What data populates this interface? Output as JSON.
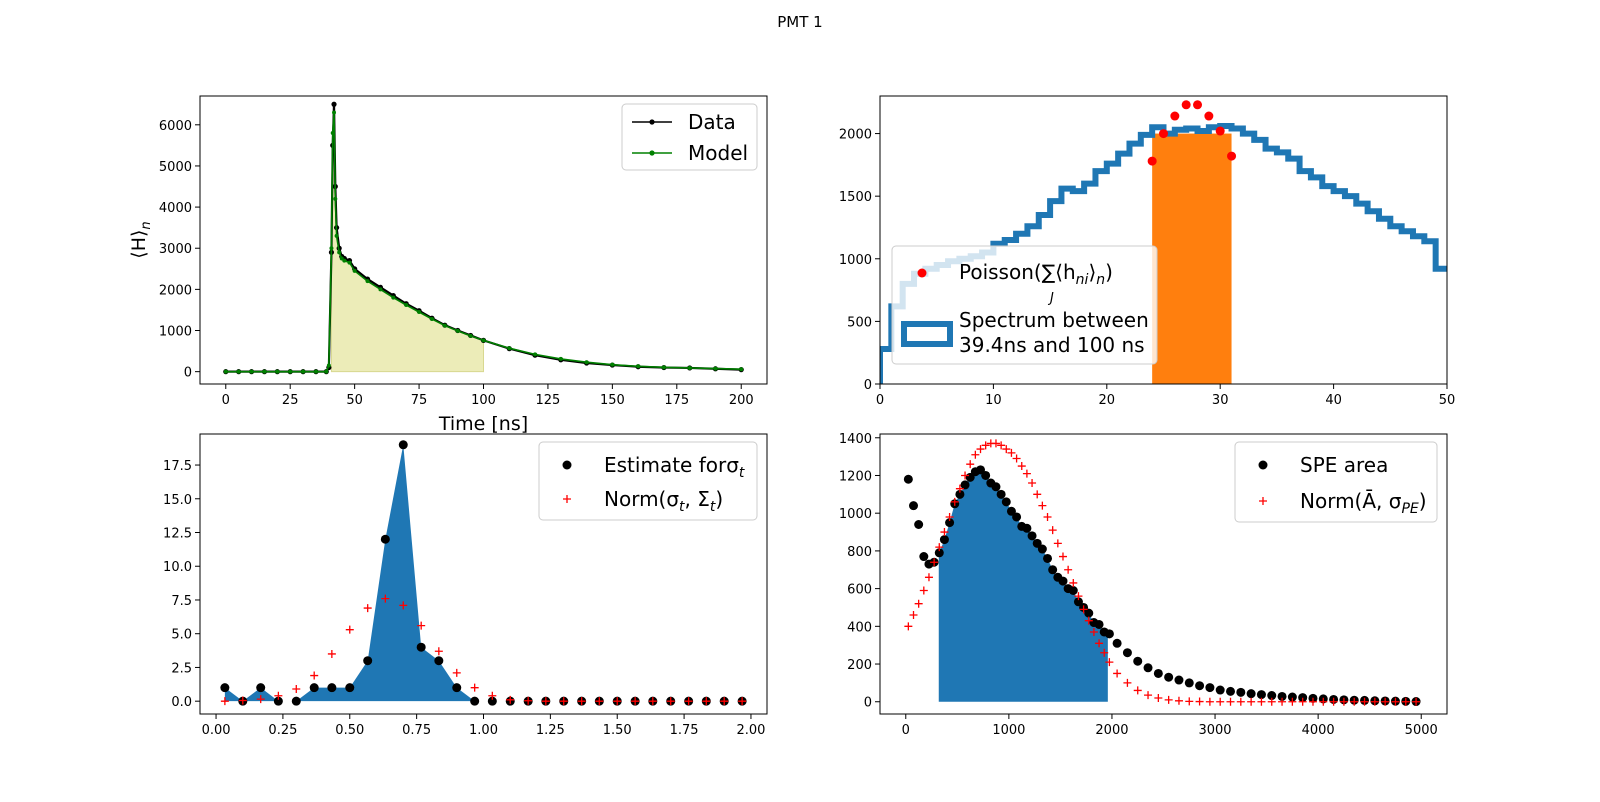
{
  "figure": {
    "suptitle": "PMT 1"
  },
  "chart_data": [
    {
      "id": "waveform",
      "type": "line",
      "title": "",
      "xlabel": "Time [ns]",
      "ylabel": "⟨H⟩",
      "ylabel_sub": "n",
      "xlim": [
        -10,
        210
      ],
      "ylim": [
        -300,
        6700
      ],
      "x_ticks": [
        0,
        25,
        50,
        75,
        100,
        125,
        150,
        175,
        200
      ],
      "y_ticks": [
        0,
        1000,
        2000,
        3000,
        4000,
        5000,
        6000
      ],
      "legend_position": "upper right",
      "shaded_region": {
        "x_from": 41,
        "x_to": 100,
        "color": "#e6e6a0"
      },
      "series": [
        {
          "name": "Data",
          "color": "#000000",
          "x": [
            0,
            5,
            10,
            15,
            20,
            25,
            30,
            35,
            39,
            40,
            41,
            41.5,
            42,
            42.5,
            43,
            44,
            45,
            46,
            48,
            50,
            55,
            60,
            65,
            70,
            75,
            80,
            85,
            90,
            95,
            100,
            110,
            120,
            130,
            140,
            150,
            160,
            170,
            180,
            190,
            200
          ],
          "y": [
            0,
            0,
            0,
            0,
            0,
            0,
            0,
            0,
            0,
            100,
            2900,
            5500,
            6500,
            4500,
            3500,
            3000,
            2800,
            2750,
            2700,
            2500,
            2250,
            2050,
            1850,
            1650,
            1480,
            1300,
            1130,
            1000,
            880,
            760,
            560,
            400,
            290,
            210,
            160,
            120,
            100,
            90,
            70,
            50
          ]
        },
        {
          "name": "Model",
          "color": "#008000",
          "x": [
            0,
            5,
            10,
            15,
            20,
            25,
            30,
            35,
            39,
            40,
            41,
            41.5,
            42,
            42.5,
            43,
            44,
            45,
            46,
            48,
            50,
            55,
            60,
            65,
            70,
            75,
            80,
            85,
            90,
            95,
            100,
            110,
            120,
            130,
            140,
            150,
            160,
            170,
            180,
            190,
            200
          ],
          "y": [
            0,
            0,
            0,
            0,
            0,
            0,
            0,
            0,
            0,
            150,
            3000,
            5800,
            6300,
            4200,
            3300,
            2900,
            2750,
            2700,
            2650,
            2450,
            2200,
            2000,
            1800,
            1620,
            1450,
            1280,
            1120,
            990,
            870,
            760,
            570,
            420,
            310,
            230,
            170,
            130,
            105,
            90,
            75,
            60
          ]
        }
      ]
    },
    {
      "id": "spectrum",
      "type": "bar",
      "title": "",
      "xlabel": "",
      "ylabel": "",
      "xlim": [
        0,
        50
      ],
      "ylim": [
        0,
        2300
      ],
      "x_ticks": [
        0,
        10,
        20,
        30,
        40,
        50
      ],
      "y_ticks": [
        0,
        500,
        1000,
        1500,
        2000
      ],
      "legend_position": "center left",
      "step_series": {
        "name": "Spectrum between 39.4ns and 100 ns",
        "name_lines": [
          "Spectrum between",
          "39.4ns and 100 ns"
        ],
        "color": "#1f77b4",
        "bin_edges": [
          0,
          1,
          2,
          3,
          4,
          5,
          6,
          7,
          8,
          9,
          10,
          11,
          12,
          13,
          14,
          15,
          16,
          17,
          18,
          19,
          20,
          21,
          22,
          23,
          24,
          25,
          26,
          27,
          28,
          29,
          30,
          31,
          32,
          33,
          34,
          35,
          36,
          37,
          38,
          39,
          40,
          41,
          42,
          43,
          44,
          45,
          46,
          47,
          48,
          49,
          50
        ],
        "values": [
          280,
          620,
          800,
          880,
          920,
          950,
          980,
          1000,
          1020,
          1050,
          1120,
          1150,
          1200,
          1260,
          1350,
          1460,
          1560,
          1540,
          1600,
          1700,
          1760,
          1840,
          1920,
          1990,
          2050,
          2000,
          2030,
          2040,
          2020,
          2050,
          2060,
          2040,
          2000,
          1950,
          1880,
          1850,
          1800,
          1700,
          1650,
          1580,
          1540,
          1500,
          1440,
          1380,
          1320,
          1260,
          1220,
          1180,
          1140,
          920
        ]
      },
      "highlight_bars": {
        "color": "#ff7f0e",
        "x_from": 24,
        "x_to": 31,
        "value": 2000
      },
      "points_series": {
        "name": "Poisson",
        "color": "#ff0000",
        "x": [
          24,
          25,
          26,
          27,
          28,
          29,
          30,
          31
        ],
        "y": [
          1780,
          2000,
          2140,
          2230,
          2230,
          2140,
          2020,
          1820
        ]
      }
    },
    {
      "id": "sigma_t",
      "type": "scatter",
      "title": "",
      "xlabel": "",
      "ylabel": "",
      "xlim": [
        -0.06,
        2.06
      ],
      "ylim": [
        -0.95,
        19.8
      ],
      "x_ticks": [
        0.0,
        0.25,
        0.5,
        0.75,
        1.0,
        1.25,
        1.5,
        1.75,
        2.0
      ],
      "x_tick_labels": [
        "0.00",
        "0.25",
        "0.50",
        "0.75",
        "1.00",
        "1.25",
        "1.50",
        "1.75",
        "2.00"
      ],
      "y_ticks": [
        0.0,
        2.5,
        5.0,
        7.5,
        10.0,
        12.5,
        15.0,
        17.5
      ],
      "y_tick_labels": [
        "0.0",
        "2.5",
        "5.0",
        "7.5",
        "10.0",
        "12.5",
        "15.0",
        "17.5"
      ],
      "legend_position": "upper right",
      "area_color": "#1f77b4",
      "x": [
        0.033,
        0.1,
        0.167,
        0.233,
        0.3,
        0.367,
        0.433,
        0.5,
        0.567,
        0.633,
        0.7,
        0.767,
        0.833,
        0.9,
        0.967,
        1.033,
        1.1,
        1.167,
        1.233,
        1.3,
        1.367,
        1.433,
        1.5,
        1.567,
        1.633,
        1.7,
        1.767,
        1.833,
        1.9,
        1.967
      ],
      "series": [
        {
          "name": "Estimate forσ",
          "name_sub": "t",
          "color": "#000000",
          "y": [
            1,
            0,
            1,
            0,
            0,
            1,
            1,
            1,
            3,
            12,
            19,
            4,
            3,
            1,
            0,
            0,
            0,
            0,
            0,
            0,
            0,
            0,
            0,
            0,
            0,
            0,
            0,
            0,
            0,
            0
          ]
        },
        {
          "name": "Norm(σ",
          "name_sub": "t",
          "name_mid": ", Σ",
          "name_sub2": "t",
          "name_end": ")",
          "color": "#ff0000",
          "y": [
            0.0,
            0.05,
            0.15,
            0.4,
            0.9,
            1.9,
            3.5,
            5.3,
            6.9,
            7.6,
            7.1,
            5.6,
            3.7,
            2.1,
            1.0,
            0.4,
            0.1,
            0.03,
            0,
            0,
            0,
            0,
            0,
            0,
            0,
            0,
            0,
            0,
            0,
            0
          ]
        }
      ]
    },
    {
      "id": "spe_area",
      "type": "scatter",
      "title": "",
      "xlabel": "",
      "ylabel": "",
      "xlim": [
        -250,
        5250
      ],
      "ylim": [
        -65,
        1420
      ],
      "x_ticks": [
        0,
        1000,
        2000,
        3000,
        4000,
        5000
      ],
      "y_ticks": [
        0,
        200,
        400,
        600,
        800,
        1000,
        1200,
        1400
      ],
      "legend_position": "upper right",
      "shaded_region": {
        "x_from": 320,
        "x_to": 1960,
        "color": "#1f77b4"
      },
      "series": [
        {
          "name": "SPE area",
          "color": "#000000",
          "x": [
            25,
            75,
            125,
            175,
            225,
            275,
            325,
            375,
            425,
            475,
            525,
            575,
            625,
            675,
            725,
            775,
            825,
            875,
            925,
            975,
            1025,
            1075,
            1125,
            1175,
            1225,
            1275,
            1325,
            1375,
            1425,
            1475,
            1525,
            1575,
            1625,
            1675,
            1725,
            1775,
            1825,
            1875,
            1925,
            1975,
            2050,
            2150,
            2250,
            2350,
            2450,
            2550,
            2650,
            2750,
            2850,
            2950,
            3050,
            3150,
            3250,
            3350,
            3450,
            3550,
            3650,
            3750,
            3850,
            3950,
            4050,
            4150,
            4250,
            4350,
            4450,
            4550,
            4650,
            4750,
            4850,
            4950
          ],
          "y": [
            1180,
            1040,
            940,
            770,
            730,
            740,
            790,
            860,
            950,
            1050,
            1100,
            1150,
            1190,
            1220,
            1230,
            1200,
            1160,
            1140,
            1100,
            1060,
            1010,
            980,
            930,
            920,
            880,
            840,
            810,
            760,
            700,
            660,
            640,
            600,
            590,
            530,
            500,
            470,
            420,
            410,
            370,
            360,
            310,
            260,
            215,
            180,
            150,
            130,
            115,
            100,
            85,
            75,
            62,
            55,
            50,
            43,
            38,
            33,
            28,
            25,
            22,
            18,
            15,
            12,
            10,
            8,
            7,
            5,
            4,
            3,
            2,
            1
          ]
        },
        {
          "name": "Norm(Ā, σ",
          "name_sub": "PE",
          "name_end": ")",
          "color": "#ff0000",
          "x": [
            25,
            75,
            125,
            175,
            225,
            275,
            325,
            375,
            425,
            475,
            525,
            575,
            625,
            675,
            725,
            775,
            825,
            875,
            925,
            975,
            1025,
            1075,
            1125,
            1175,
            1225,
            1275,
            1325,
            1375,
            1425,
            1475,
            1525,
            1575,
            1625,
            1675,
            1725,
            1775,
            1825,
            1875,
            1925,
            1975,
            2050,
            2150,
            2250,
            2350,
            2450,
            2550,
            2650,
            2750,
            2850,
            2950,
            3050,
            3150,
            3250,
            3350,
            3450,
            3550,
            3650,
            3750,
            3850,
            3950,
            4050,
            4150,
            4250,
            4350,
            4450,
            4550,
            4650,
            4750,
            4850,
            4950
          ],
          "y": [
            400,
            460,
            520,
            590,
            660,
            740,
            820,
            900,
            980,
            1060,
            1130,
            1200,
            1260,
            1310,
            1340,
            1360,
            1370,
            1370,
            1360,
            1340,
            1320,
            1290,
            1250,
            1210,
            1160,
            1100,
            1040,
            980,
            910,
            840,
            770,
            700,
            630,
            560,
            490,
            430,
            370,
            310,
            260,
            210,
            150,
            100,
            60,
            35,
            20,
            10,
            5,
            2,
            1,
            0,
            0,
            0,
            0,
            0,
            0,
            0,
            0,
            0,
            0,
            0,
            0,
            0,
            0,
            0,
            0,
            0,
            0,
            0,
            0,
            0
          ]
        }
      ]
    }
  ]
}
